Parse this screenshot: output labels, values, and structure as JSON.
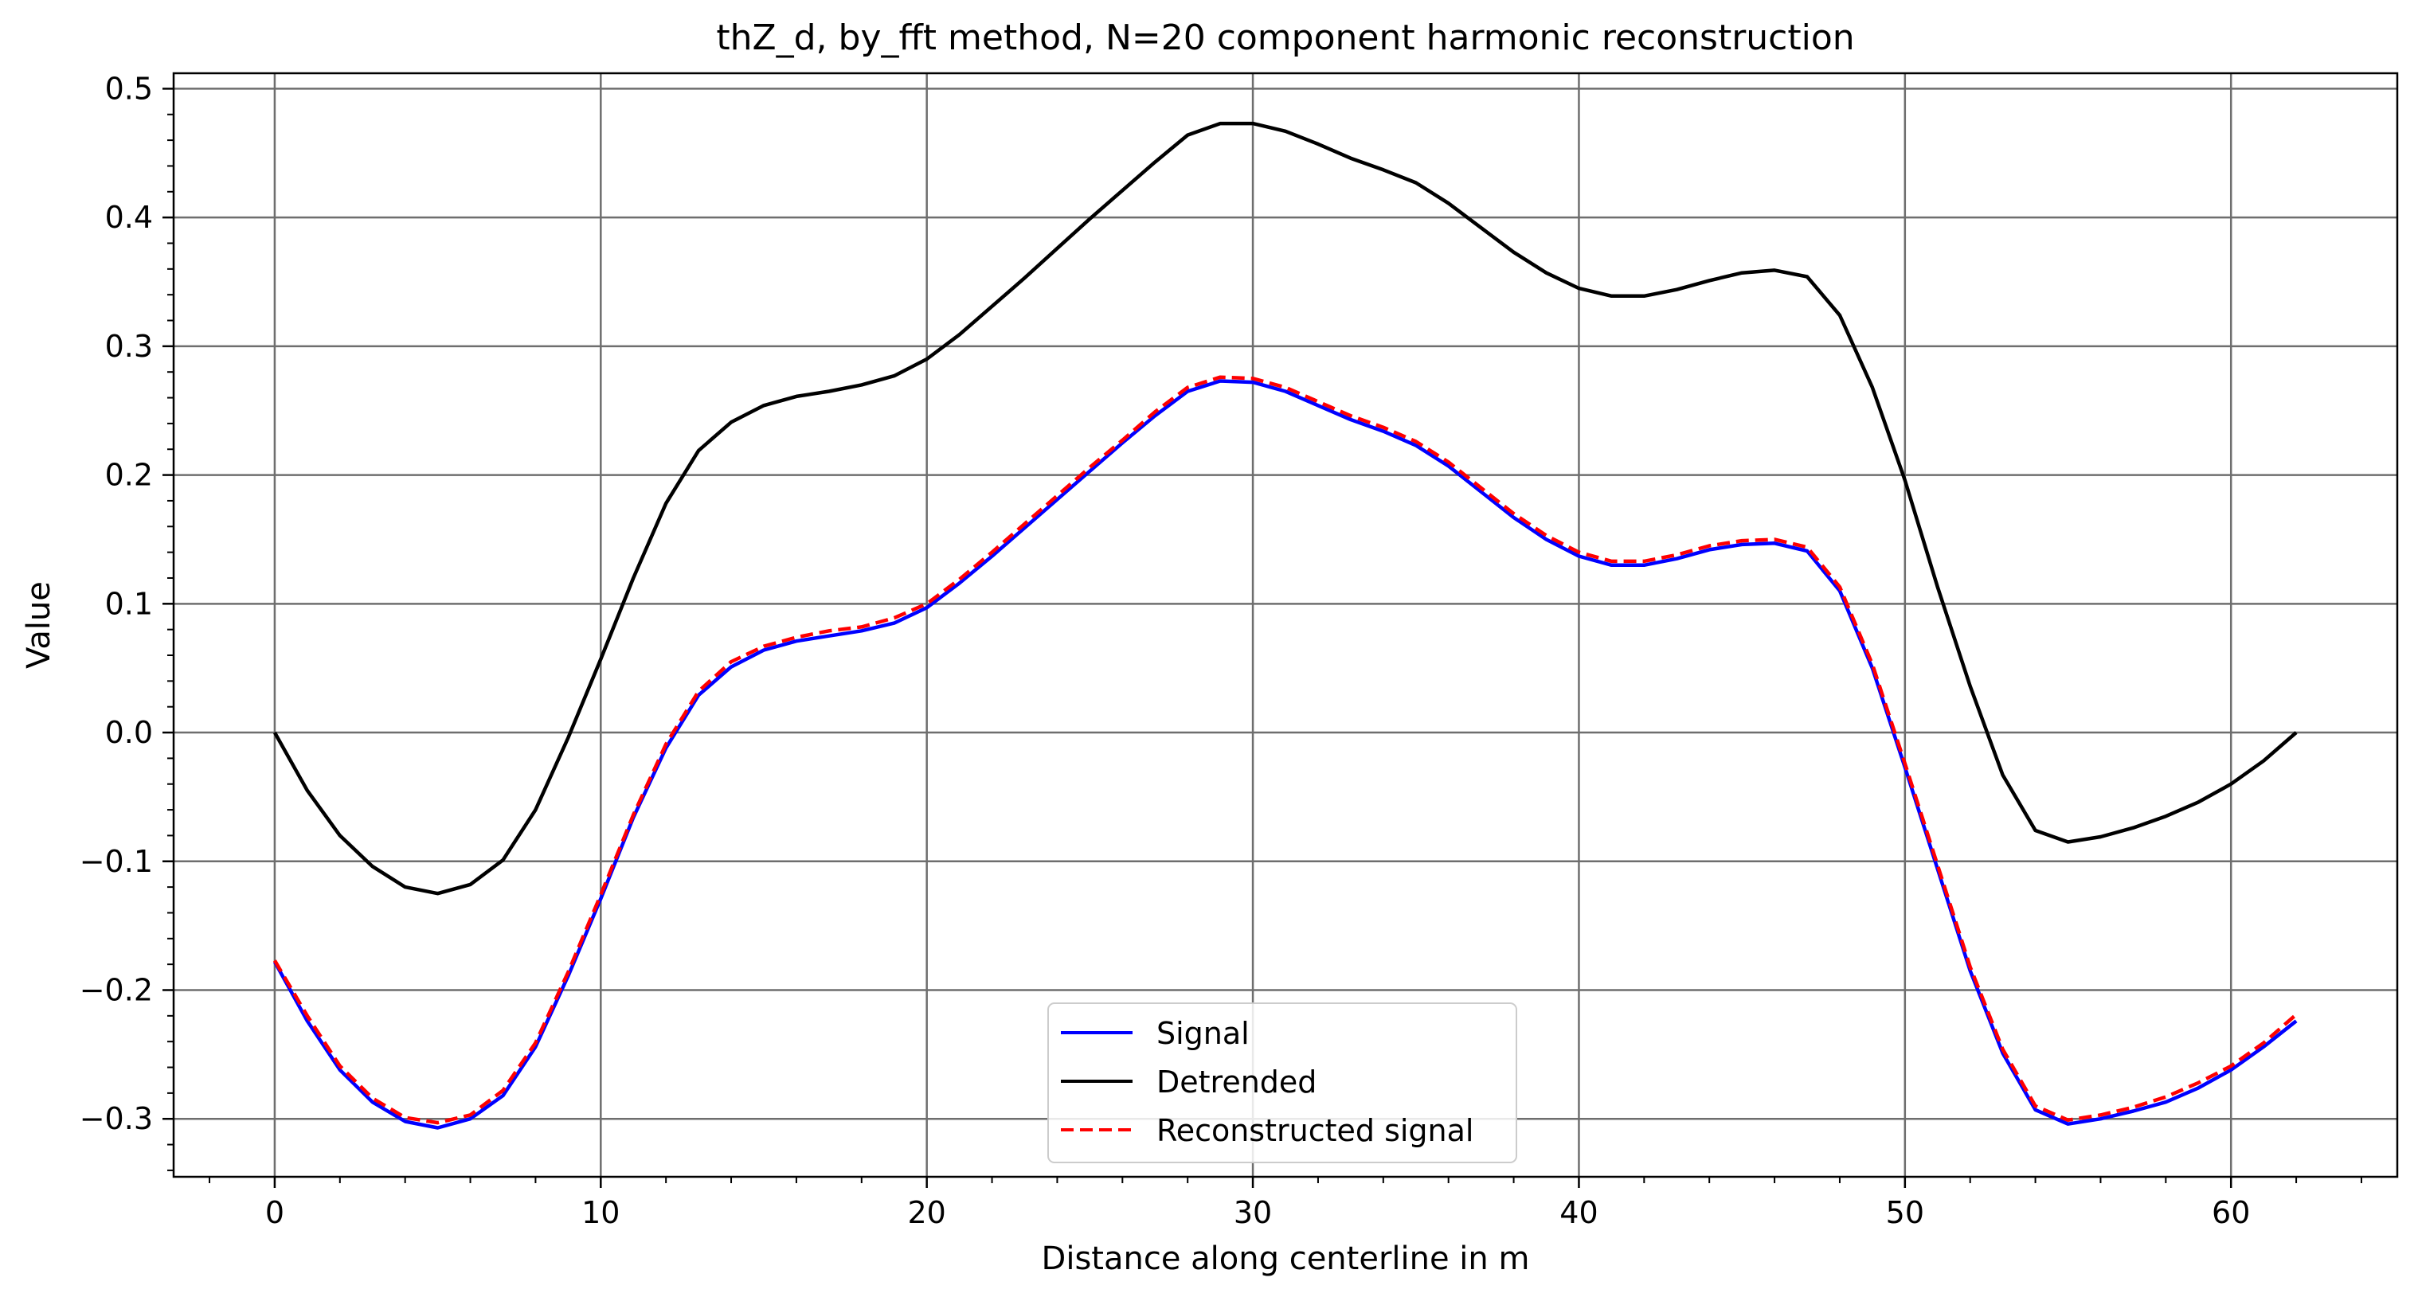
{
  "chart_data": {
    "type": "line",
    "title": "thZ_d, by_fft method, N=20 component harmonic reconstruction",
    "xlabel": "Distance along centerline in m",
    "ylabel": "Value",
    "xlim": [
      -3.1,
      65.1
    ],
    "ylim": [
      -0.345,
      0.512
    ],
    "xticks": [
      0,
      10,
      20,
      30,
      40,
      50,
      60
    ],
    "yticks": [
      -0.3,
      -0.2,
      -0.1,
      0.0,
      0.1,
      0.2,
      0.3,
      0.4,
      0.5
    ],
    "xtick_labels": [
      "0",
      "10",
      "20",
      "30",
      "40",
      "50",
      "60"
    ],
    "ytick_labels": [
      "−0.3",
      "−0.2",
      "−0.1",
      "0.0",
      "0.1",
      "0.2",
      "0.3",
      "0.4",
      "0.5"
    ],
    "grid": true,
    "legend_position": "lower-center",
    "x": [
      0,
      1,
      2,
      3,
      4,
      5,
      6,
      7,
      8,
      9,
      10,
      11,
      12,
      13,
      14,
      15,
      16,
      17,
      18,
      19,
      20,
      21,
      22,
      23,
      24,
      25,
      26,
      27,
      28,
      29,
      30,
      31,
      32,
      33,
      34,
      35,
      36,
      37,
      38,
      39,
      40,
      41,
      42,
      43,
      44,
      45,
      46,
      47,
      48,
      49,
      50,
      51,
      52,
      53,
      54,
      55,
      56,
      57,
      58,
      59,
      60,
      61,
      62
    ],
    "series": [
      {
        "name": "Signal",
        "color": "#0000ff",
        "style": "solid",
        "values": [
          -0.178,
          -0.224,
          -0.262,
          -0.287,
          -0.302,
          -0.307,
          -0.3,
          -0.282,
          -0.244,
          -0.189,
          -0.129,
          -0.066,
          -0.012,
          0.029,
          0.051,
          0.064,
          0.071,
          0.075,
          0.079,
          0.085,
          0.097,
          0.116,
          0.137,
          0.159,
          0.181,
          0.203,
          0.225,
          0.246,
          0.265,
          0.273,
          0.272,
          0.265,
          0.254,
          0.243,
          0.234,
          0.223,
          0.207,
          0.187,
          0.167,
          0.15,
          0.137,
          0.13,
          0.13,
          0.135,
          0.142,
          0.146,
          0.147,
          0.141,
          0.11,
          0.05,
          -0.027,
          -0.106,
          -0.185,
          -0.249,
          -0.293,
          -0.304,
          -0.3,
          -0.294,
          -0.287,
          -0.276,
          -0.262,
          -0.244,
          -0.224
        ]
      },
      {
        "name": "Detrended",
        "color": "#000000",
        "style": "solid",
        "values": [
          0.0,
          -0.045,
          -0.08,
          -0.104,
          -0.12,
          -0.125,
          -0.118,
          -0.099,
          -0.06,
          -0.004,
          0.057,
          0.12,
          0.178,
          0.219,
          0.241,
          0.254,
          0.261,
          0.265,
          0.27,
          0.277,
          0.29,
          0.309,
          0.331,
          0.353,
          0.376,
          0.399,
          0.421,
          0.443,
          0.464,
          0.473,
          0.473,
          0.467,
          0.457,
          0.446,
          0.437,
          0.427,
          0.411,
          0.392,
          0.373,
          0.357,
          0.345,
          0.339,
          0.339,
          0.344,
          0.351,
          0.357,
          0.359,
          0.354,
          0.324,
          0.268,
          0.196,
          0.113,
          0.036,
          -0.033,
          -0.076,
          -0.085,
          -0.081,
          -0.074,
          -0.065,
          -0.054,
          -0.04,
          -0.022,
          0.0
        ]
      },
      {
        "name": "Reconstructed signal",
        "color": "#ff0000",
        "style": "dashed",
        "values": [
          -0.177,
          -0.22,
          -0.259,
          -0.284,
          -0.299,
          -0.303,
          -0.297,
          -0.278,
          -0.241,
          -0.186,
          -0.126,
          -0.064,
          -0.009,
          0.032,
          0.055,
          0.067,
          0.074,
          0.079,
          0.082,
          0.089,
          0.1,
          0.119,
          0.14,
          0.162,
          0.184,
          0.206,
          0.227,
          0.249,
          0.268,
          0.276,
          0.275,
          0.268,
          0.257,
          0.246,
          0.237,
          0.226,
          0.21,
          0.19,
          0.17,
          0.153,
          0.14,
          0.133,
          0.133,
          0.138,
          0.145,
          0.149,
          0.15,
          0.144,
          0.113,
          0.053,
          -0.024,
          -0.103,
          -0.182,
          -0.246,
          -0.29,
          -0.301,
          -0.297,
          -0.291,
          -0.283,
          -0.272,
          -0.259,
          -0.241,
          -0.219
        ]
      }
    ]
  }
}
